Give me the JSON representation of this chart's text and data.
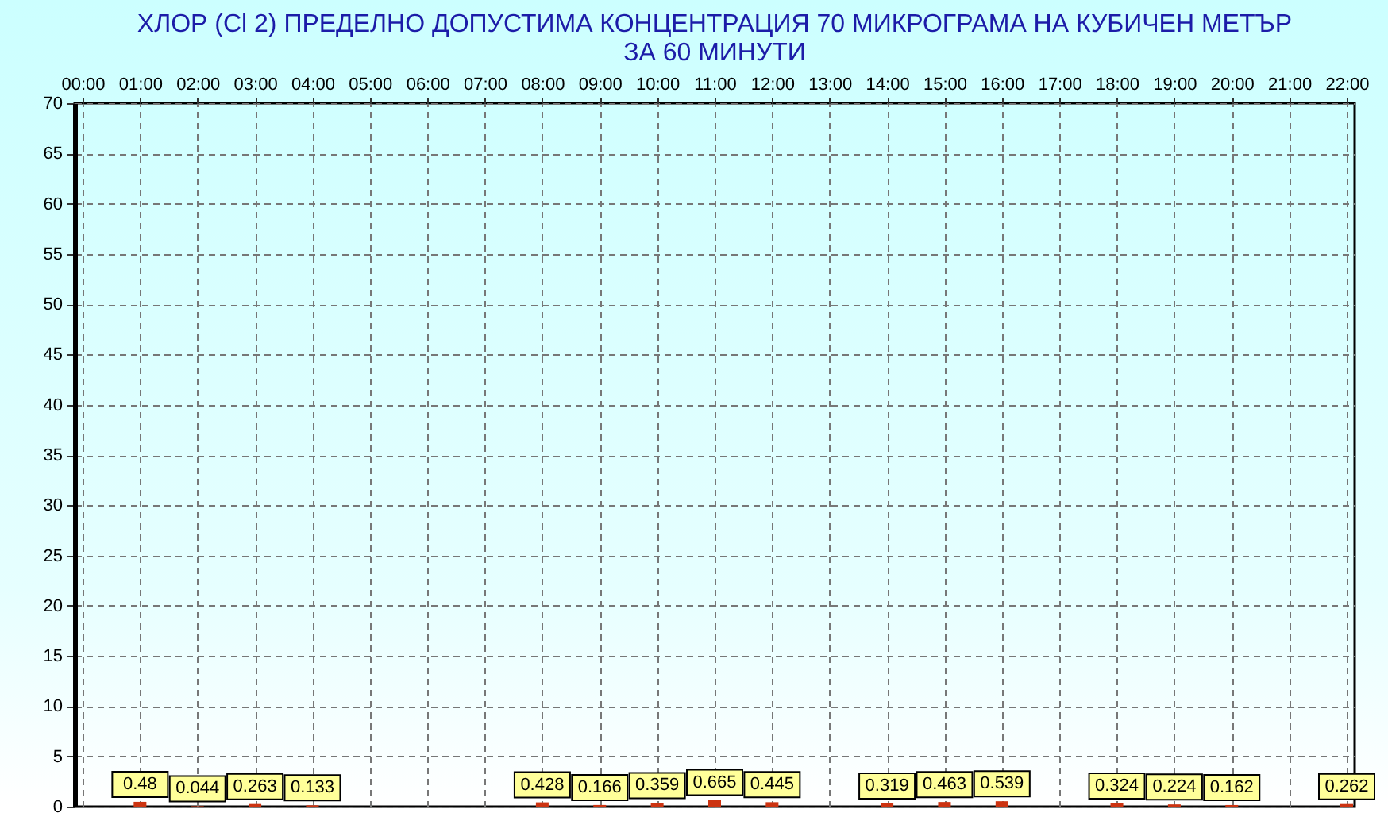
{
  "chart_data": {
    "type": "bar",
    "title": "ХЛОР (Cl 2) ПРЕДЕЛНО ДОПУСТИМА КОНЦЕНТРАЦИЯ 70 МИКРОГРАМА НА КУБИЧЕН МЕТЪР\nЗА 60 МИНУТИ",
    "x": [
      1,
      2,
      3,
      4,
      5,
      6,
      7,
      8,
      9,
      10,
      11,
      12,
      13,
      14,
      15,
      16,
      17,
      18,
      19,
      20,
      21,
      22
    ],
    "series": [
      {
        "color": "#cc3311",
        "values": [
          0.48,
          0.044,
          0.263,
          0.133,
          null,
          null,
          null,
          0.428,
          0.166,
          0.359,
          0.665,
          0.445,
          null,
          0.319,
          0.463,
          0.539,
          null,
          0.324,
          0.224,
          0.162,
          null,
          0.262
        ]
      }
    ],
    "xlim": [
      0,
      22
    ],
    "xticks": [
      {
        "value": 0,
        "label": "00:00"
      },
      {
        "value": 1,
        "label": "01:00"
      },
      {
        "value": 2,
        "label": "02:00"
      },
      {
        "value": 3,
        "label": "03:00"
      },
      {
        "value": 4,
        "label": "04:00"
      },
      {
        "value": 5,
        "label": "05:00"
      },
      {
        "value": 6,
        "label": "06:00"
      },
      {
        "value": 7,
        "label": "07:00"
      },
      {
        "value": 8,
        "label": "08:00"
      },
      {
        "value": 9,
        "label": "09:00"
      },
      {
        "value": 10,
        "label": "10:00"
      },
      {
        "value": 11,
        "label": "11:00"
      },
      {
        "value": 12,
        "label": "12:00"
      },
      {
        "value": 13,
        "label": "13:00"
      },
      {
        "value": 14,
        "label": "14:00"
      },
      {
        "value": 15,
        "label": "15:00"
      },
      {
        "value": 16,
        "label": "16:00"
      },
      {
        "value": 17,
        "label": "17:00"
      },
      {
        "value": 18,
        "label": "18:00"
      },
      {
        "value": 19,
        "label": "19:00"
      },
      {
        "value": 20,
        "label": "20:00"
      },
      {
        "value": 21,
        "label": "21:00"
      },
      {
        "value": 22,
        "label": "22:00"
      }
    ],
    "ylim": [
      0,
      70
    ],
    "yticks": [
      0,
      5,
      10,
      15,
      20,
      25,
      30,
      35,
      40,
      45,
      50,
      55,
      60,
      65,
      70
    ],
    "grid": true,
    "data_labels": true
  }
}
